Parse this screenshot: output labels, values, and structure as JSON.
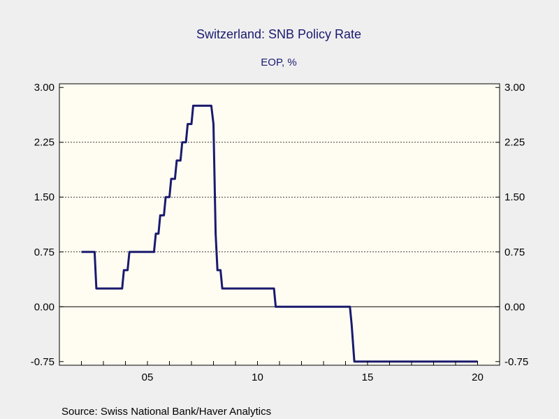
{
  "chart_data": {
    "type": "line",
    "title": "Switzerland: SNB Policy Rate",
    "subtitle": "EOP, %",
    "source": "Source:  Swiss National Bank/Haver Analytics",
    "xlim": [
      2001,
      2021
    ],
    "ylim": [
      -0.8,
      3.05
    ],
    "y_ticks": [
      3.0,
      2.25,
      1.5,
      0.75,
      0.0,
      -0.75
    ],
    "y_tick_labels": [
      "3.00",
      "2.25",
      "1.50",
      "0.75",
      "0.00",
      "-0.75"
    ],
    "x_tick_labels": [
      {
        "value": 2005,
        "label": "05"
      },
      {
        "value": 2010,
        "label": "10"
      },
      {
        "value": 2015,
        "label": "15"
      },
      {
        "value": 2020,
        "label": "20"
      }
    ],
    "x_minor_ticks": [
      2001,
      2002,
      2003,
      2004,
      2005,
      2006,
      2007,
      2008,
      2009,
      2010,
      2011,
      2012,
      2013,
      2014,
      2015,
      2016,
      2017,
      2018,
      2019,
      2020
    ],
    "grid_values": [
      2.25,
      1.5,
      0.75
    ],
    "zero_line": 0,
    "line_color": "#1a1a6e",
    "plot_background": "#fffdf2",
    "series": [
      {
        "x": [
          2002.0,
          2002.6,
          2002.68,
          2003.85,
          2003.93,
          2004.1,
          2004.18,
          2005.3,
          2005.38,
          2005.5,
          2005.58,
          2005.75,
          2005.83,
          2006.0,
          2006.08,
          2006.25,
          2006.33,
          2006.5,
          2006.58,
          2006.75,
          2006.83,
          2007.0,
          2007.08,
          2007.25,
          2007.33,
          2007.9,
          2008.0,
          2008.1,
          2008.18,
          2008.32,
          2008.4,
          2010.75,
          2010.83,
          2014.2,
          2014.28,
          2014.4,
          2020.0
        ],
        "y": [
          0.75,
          0.75,
          0.25,
          0.25,
          0.5,
          0.5,
          0.75,
          0.75,
          1.0,
          1.0,
          1.25,
          1.25,
          1.5,
          1.5,
          1.75,
          1.75,
          2.0,
          2.0,
          2.25,
          2.25,
          2.5,
          2.5,
          2.75,
          2.75,
          2.75,
          2.75,
          2.5,
          1.0,
          0.5,
          0.5,
          0.25,
          0.25,
          0.0,
          0.0,
          -0.25,
          -0.75,
          -0.75
        ]
      }
    ]
  }
}
